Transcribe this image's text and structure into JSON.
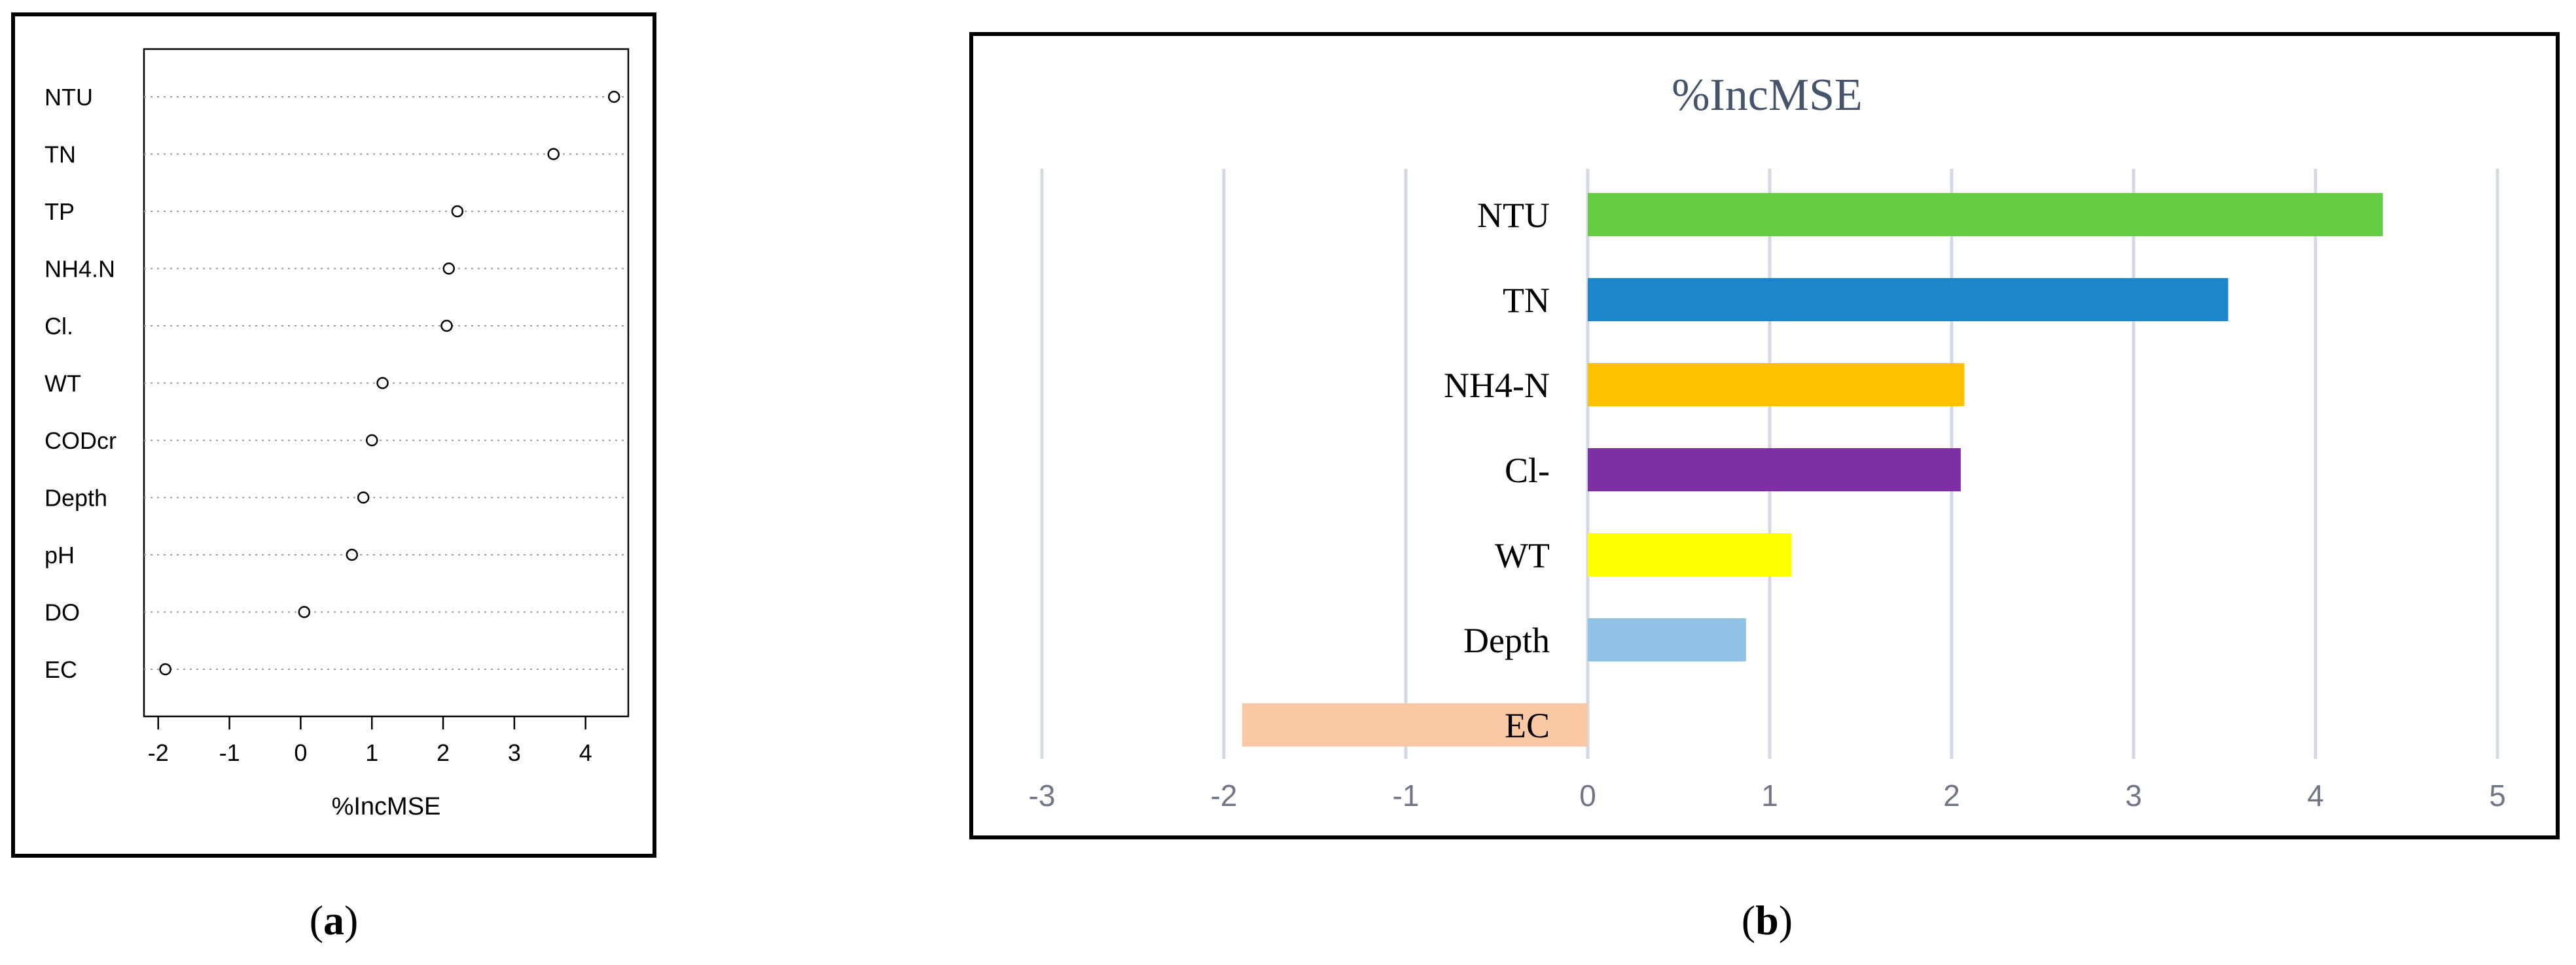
{
  "panels": {
    "a": {
      "caption_open": "(",
      "caption_letter": "a",
      "caption_close": ")"
    },
    "b": {
      "caption_open": "(",
      "caption_letter": "b",
      "caption_close": ")"
    }
  },
  "chart_data": [
    {
      "id": "panel-a",
      "type": "scatter",
      "title": "",
      "xlabel": "%IncMSE",
      "ylabel": "",
      "xlim": [
        -2.2,
        4.6
      ],
      "xticks": [
        -2,
        -1,
        0,
        1,
        2,
        3,
        4
      ],
      "grid": "dotted horizontal guides per variable",
      "categories": [
        "NTU",
        "TN",
        "TP",
        "NH4.N",
        "Cl.",
        "WT",
        "CODcr",
        "Depth",
        "pH",
        "DO",
        "EC"
      ],
      "values": [
        4.4,
        3.55,
        2.2,
        2.08,
        2.05,
        1.15,
        1.0,
        0.88,
        0.72,
        0.05,
        -1.9
      ]
    },
    {
      "id": "panel-b",
      "type": "bar",
      "orientation": "horizontal",
      "title": "%IncMSE",
      "xlabel": "",
      "ylabel": "",
      "xlim": [
        -3,
        5
      ],
      "xticks": [
        -3,
        -2,
        -1,
        0,
        1,
        2,
        3,
        4,
        5
      ],
      "grid": "vertical gridlines",
      "categories": [
        "NTU",
        "TN",
        "NH4-N",
        "Cl-",
        "WT",
        "Depth",
        "EC"
      ],
      "values": [
        4.37,
        3.52,
        2.07,
        2.05,
        1.12,
        0.87,
        -1.9
      ],
      "colors": [
        "#66cc44",
        "#1b86c9",
        "#ffc000",
        "#7e2fa4",
        "#ffff00",
        "#92c2e6",
        "#fbc8a6"
      ]
    }
  ]
}
